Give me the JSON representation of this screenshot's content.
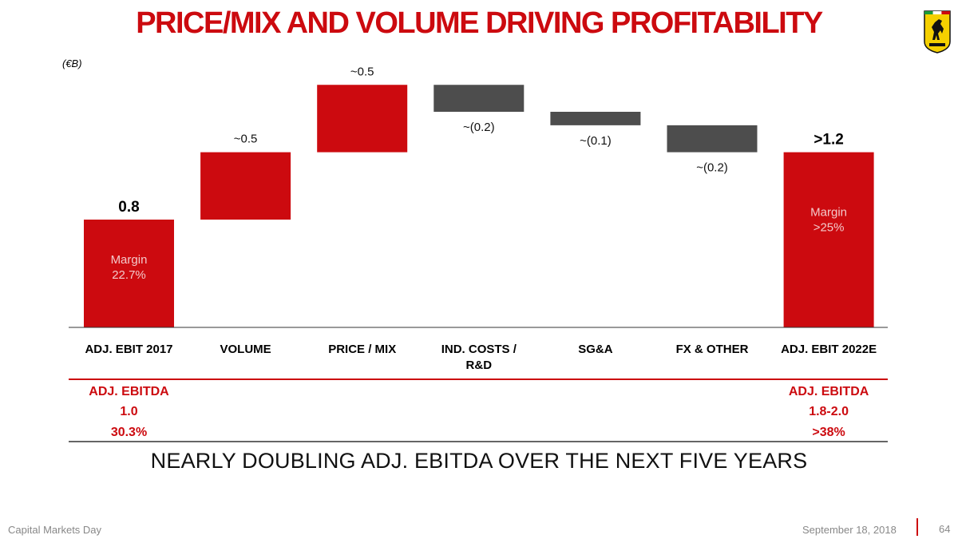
{
  "title": "PRICE/MIX AND VOLUME DRIVING PROFITABILITY",
  "unit_label": "(€B)",
  "headline": "NEARLY DOUBLING ADJ. EBITDA OVER THE NEXT FIVE YEARS",
  "footer": {
    "left": "Capital Markets Day",
    "date": "September 18, 2018",
    "page": "64"
  },
  "colors": {
    "accent": "#cc0a0f",
    "negative": "#4d4d4d"
  },
  "chart_data": {
    "type": "bar",
    "subtype": "waterfall",
    "categories": [
      "ADJ. EBIT 2017",
      "VOLUME",
      "PRICE / MIX",
      "IND. COSTS / R&D",
      "SG&A",
      "FX & OTHER",
      "ADJ. EBIT 2022E"
    ],
    "category_lines": [
      [
        "ADJ. EBIT 2017"
      ],
      [
        "VOLUME"
      ],
      [
        "PRICE / MIX"
      ],
      [
        "IND. COSTS /",
        "R&D"
      ],
      [
        "SG&A"
      ],
      [
        "FX & OTHER"
      ],
      [
        "ADJ. EBIT 2022E"
      ]
    ],
    "bars": [
      {
        "kind": "total",
        "start": 0,
        "end": 0.8,
        "label": "0.8",
        "inner_label": [
          "Margin",
          "22.7%"
        ]
      },
      {
        "kind": "increase",
        "start": 0.8,
        "end": 1.3,
        "label": "~0.5"
      },
      {
        "kind": "increase",
        "start": 1.3,
        "end": 1.8,
        "label": "~0.5"
      },
      {
        "kind": "decrease",
        "start": 1.8,
        "end": 1.6,
        "label": "~(0.2)"
      },
      {
        "kind": "decrease",
        "start": 1.6,
        "end": 1.5,
        "label": "~(0.1)"
      },
      {
        "kind": "decrease",
        "start": 1.5,
        "end": 1.3,
        "label": "~(0.2)"
      },
      {
        "kind": "total",
        "start": 0,
        "end": 1.3,
        "label": ">1.2",
        "inner_label": [
          "Margin",
          ">25%"
        ]
      }
    ],
    "ylim": [
      0,
      1.8
    ],
    "title": "",
    "xlabel": "",
    "ylabel": ""
  },
  "ebitda_table": {
    "left": {
      "label": "ADJ. EBITDA",
      "value": "1.0",
      "margin": "30.3%"
    },
    "right": {
      "label": "ADJ. EBITDA",
      "value": "1.8-2.0",
      "margin": ">38%"
    }
  }
}
